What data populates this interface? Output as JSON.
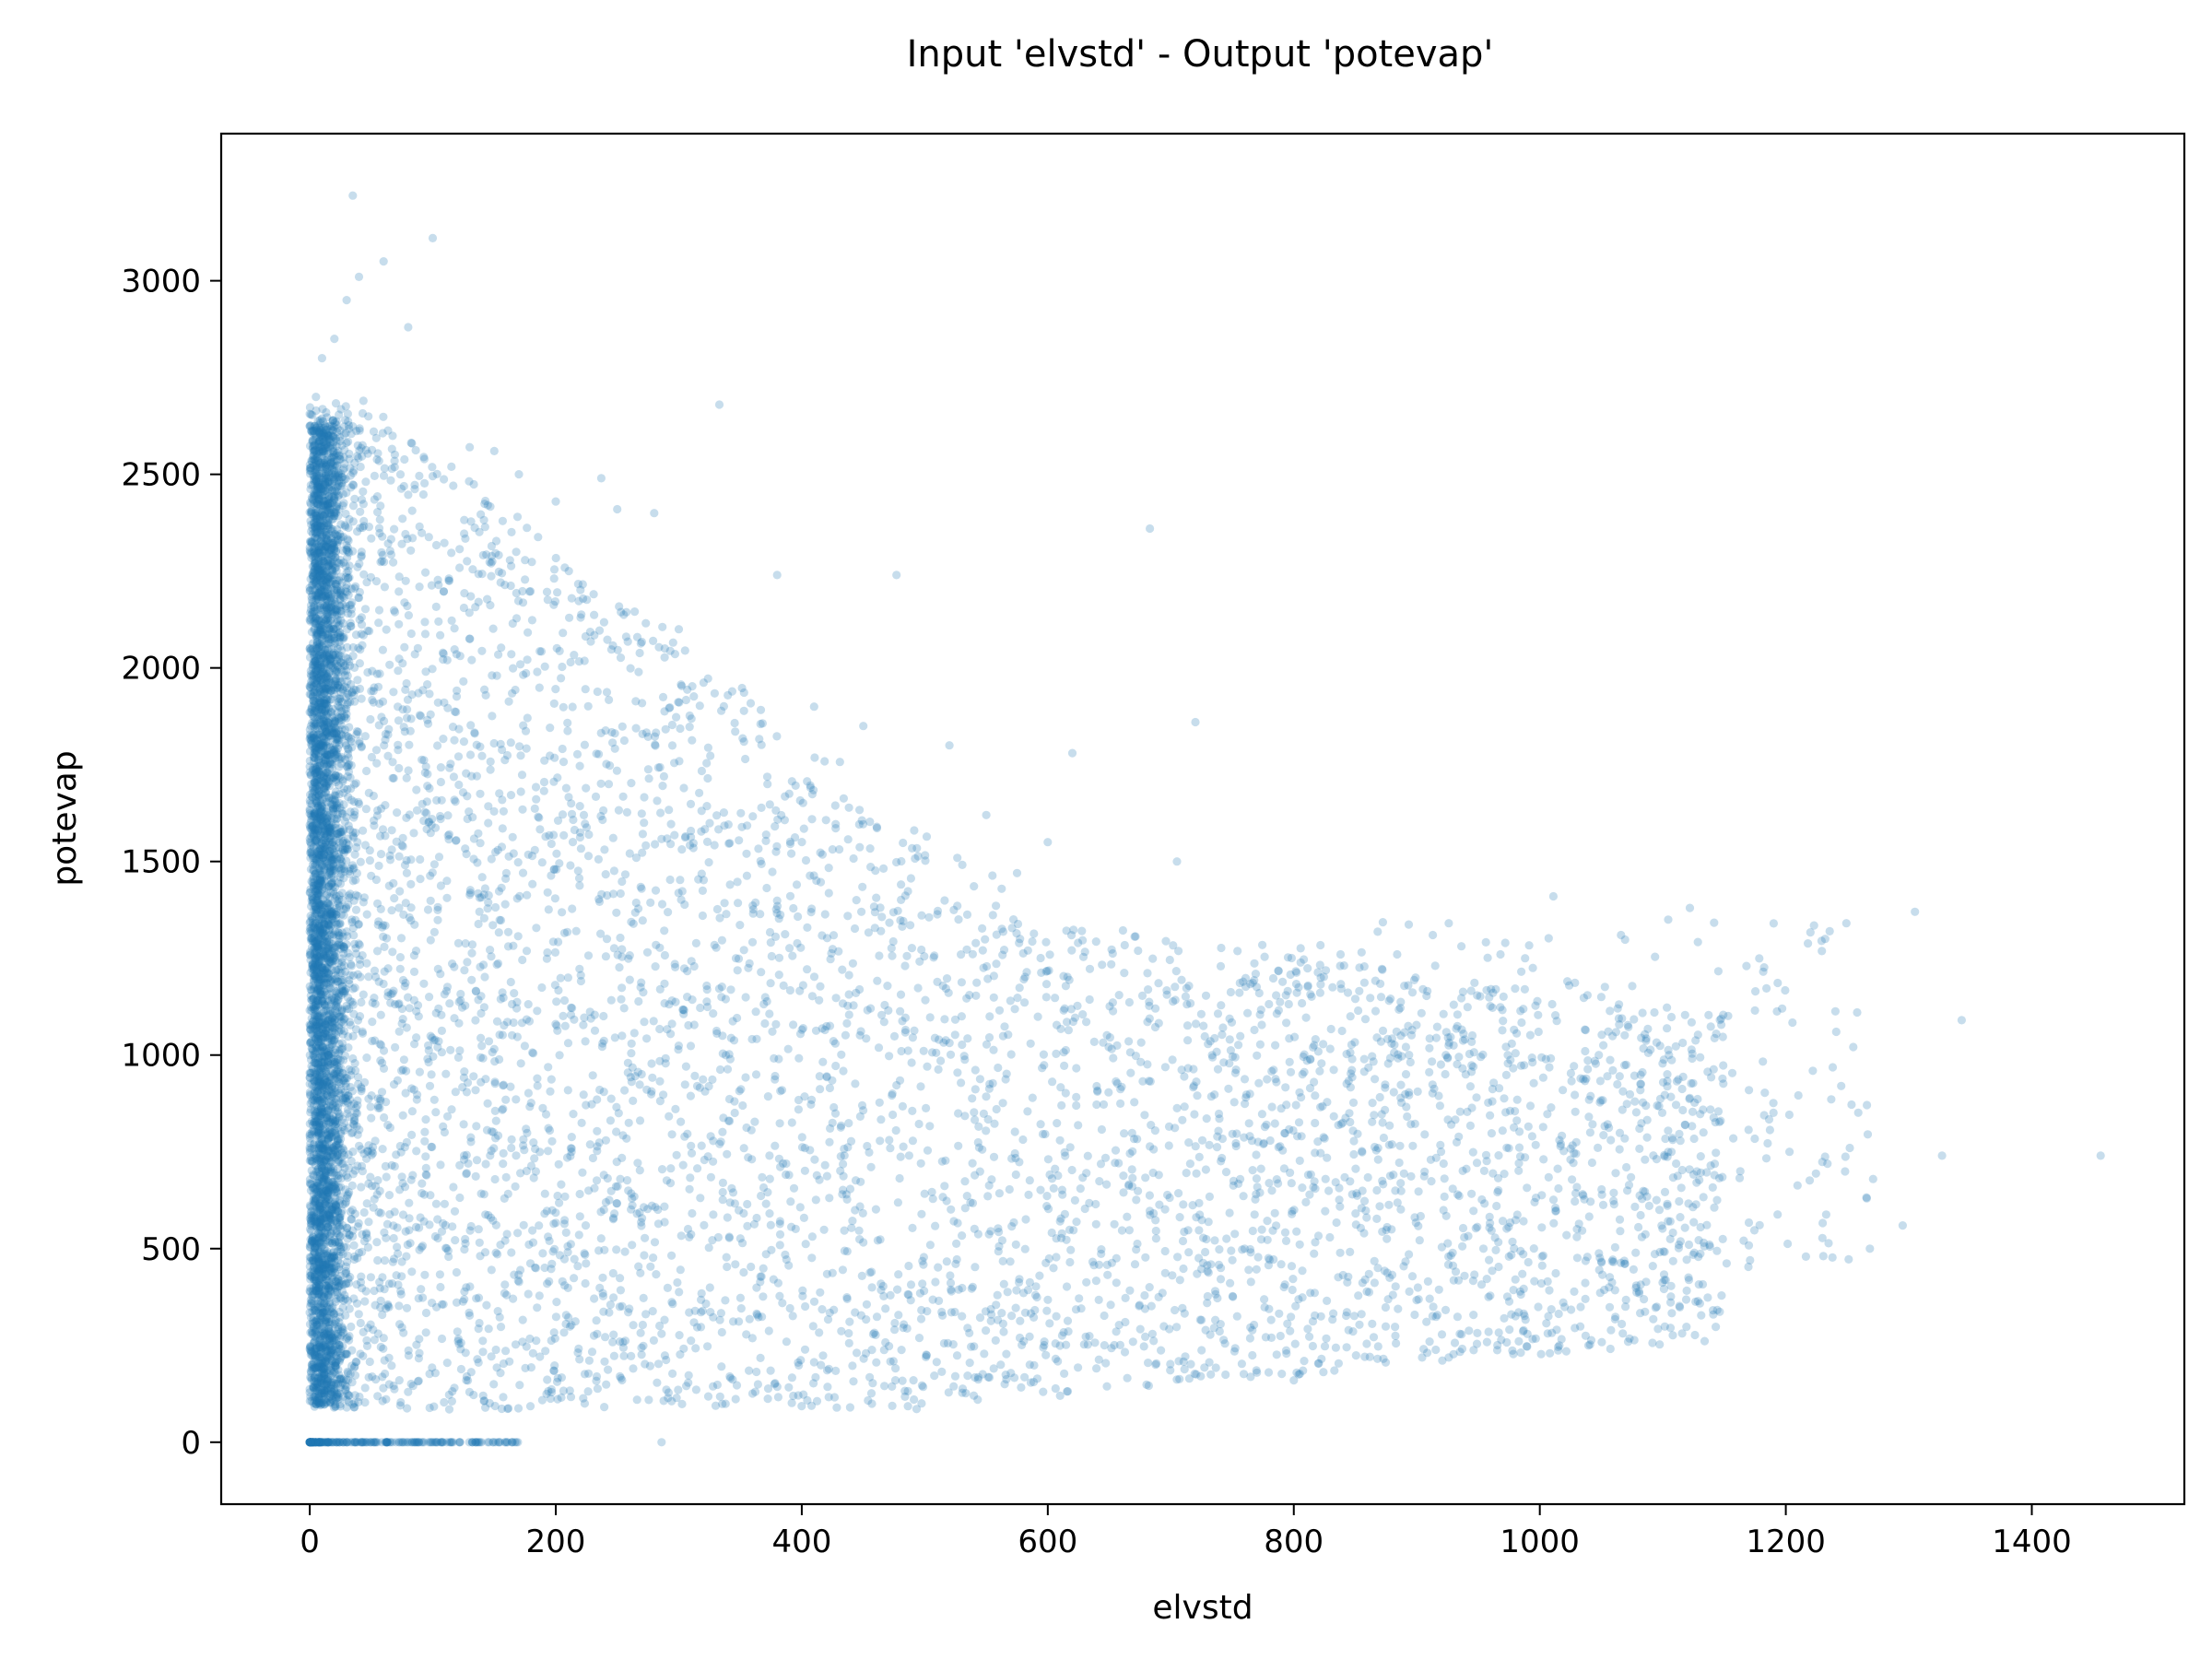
{
  "chart_data": {
    "type": "scatter",
    "title": "Input 'elvstd' - Output 'potevap'",
    "xlabel": "elvstd",
    "ylabel": "potevap",
    "xlim": [
      -72,
      1524
    ],
    "ylim": [
      -160,
      3380
    ],
    "x_ticks": [
      0,
      200,
      400,
      600,
      800,
      1000,
      1200,
      1400
    ],
    "y_ticks": [
      0,
      500,
      1000,
      1500,
      2000,
      2500,
      3000
    ],
    "grid": false,
    "legend": "none",
    "marker_color": "#1f77b4",
    "marker_alpha": 0.25,
    "series": [
      {
        "x": [
          1456,
          1343,
          1327,
          1305,
          1295,
          1271,
          1258,
          1252,
          1245,
          1241,
          1232,
          1203,
          1197,
          1168,
          1163,
          1147,
          1142,
          1133,
          1122,
          1118,
          1105,
          1083,
          1081,
          1066,
          1050,
          1048,
          1037,
          1025,
          1016,
          1011,
          999,
          988,
          974,
          971,
          968,
          946,
          935,
          930,
          913,
          905,
          899,
          893,
          884,
          871,
          858,
          846,
          838,
          822,
          804,
          800,
          760,
          720,
          705,
          683,
          620,
          610,
          600,
          590,
          575,
          565,
          550,
          543,
          530,
          520,
          477,
          450,
          410,
          380,
          333,
          300,
          286,
          280,
          250,
          237,
          200,
          170,
          150,
          130,
          100,
          80,
          60,
          40,
          35,
          30,
          20,
          10,
          5
        ],
        "y": [
          740,
          1090,
          740,
          1370,
          560,
          680,
          1110,
          760,
          920,
          1060,
          1300,
          750,
          1120,
          1230,
          700,
          830,
          690,
          800,
          1380,
          820,
          1000,
          530,
          810,
          1310,
          1150,
          1000,
          370,
          730,
          780,
          1410,
          1060,
          1250,
          1000,
          320,
          1260,
          970,
          280,
          1130,
          1310,
          1170,
          1200,
          1180,
          1260,
          1150,
          420,
          1100,
          1260,
          1200,
          175,
          160,
          500,
          1860,
          1500,
          2360,
          1780,
          120,
          1550,
          380,
          1470,
          150,
          1620,
          110,
          1100,
          1800,
          2240,
          1850,
          1900,
          2240,
          2680,
          2100,
          0,
          2400,
          2410,
          2490,
          2430,
          2500,
          2560,
          2570,
          3110,
          2880,
          3050,
          3010,
          3220,
          2950,
          2850,
          2800,
          2700
        ]
      }
    ]
  }
}
